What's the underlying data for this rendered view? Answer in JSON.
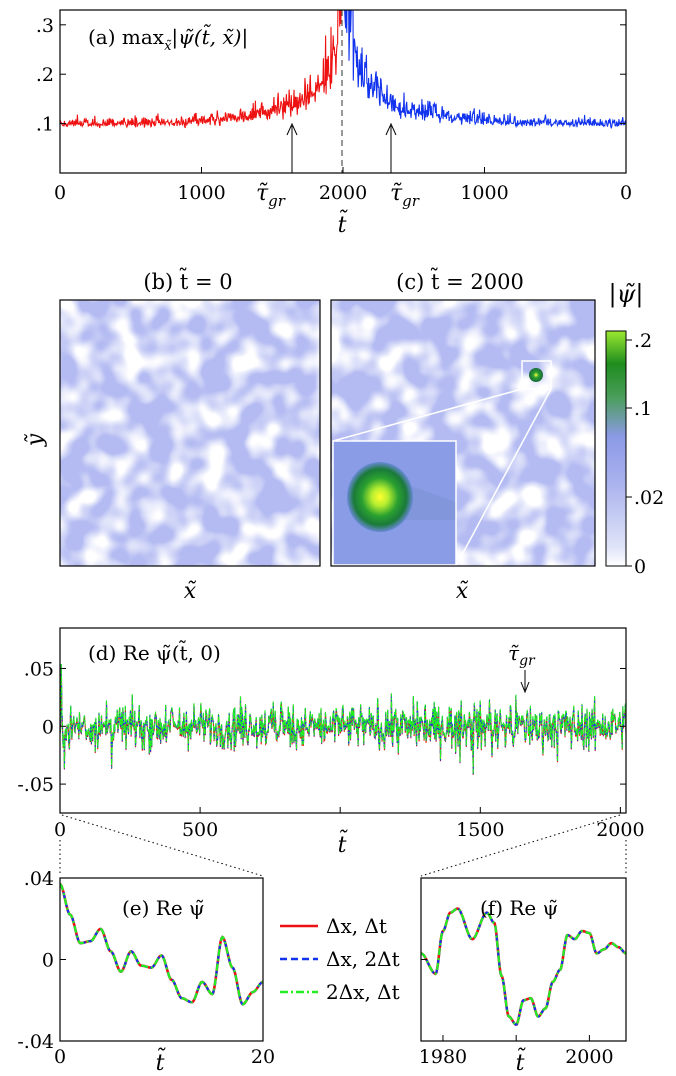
{
  "panel_a": {
    "label": "(a) max",
    "label_sub": "x̃",
    "label_expr": "|ψ̃(t̃, x̃)|",
    "yticks": [
      ".1",
      ".2",
      ".3"
    ],
    "xticks": [
      "0",
      "1000",
      "2000",
      "1000",
      "0"
    ],
    "xlabel": "t̃",
    "marker_label_left": "τ̃",
    "marker_label_right": "τ̃",
    "marker_sub": "gr"
  },
  "panel_b": {
    "title": "(b) t̃ = 0",
    "xlabel": "x̃",
    "ylabel": "ỹ"
  },
  "panel_c": {
    "title": "(c) t̃ = 2000",
    "xlabel": "x̃"
  },
  "colorbar": {
    "title": "|ψ̃|",
    "ticks": [
      ".2",
      ".1",
      ".02",
      "0"
    ]
  },
  "panel_d": {
    "label": "(d) Re ψ̃(t̃, 0)",
    "yticks": [
      ".05",
      "0",
      "-.05"
    ],
    "xticks": [
      "0",
      "500",
      "1500",
      "2000"
    ],
    "xlabel": "t̃",
    "marker_label": "τ̃",
    "marker_sub": "gr"
  },
  "panel_e": {
    "label": "(e) Re ψ̃",
    "yticks": [
      ".04",
      "0",
      "-.04"
    ],
    "xticks": [
      "0",
      "20"
    ],
    "xlabel": "t̃"
  },
  "panel_f": {
    "label": "(f) Re ψ̃",
    "xticks": [
      "1980",
      "2000"
    ],
    "xlabel": "t̃"
  },
  "legend": [
    {
      "label": "Δx, Δt",
      "color": "#ee1111",
      "dash": "solid"
    },
    {
      "label": "Δx, 2Δt",
      "color": "#1133ee",
      "dash": "dashed"
    },
    {
      "label": "2Δx, Δt",
      "color": "#22ee22",
      "dash": "dashdot"
    }
  ],
  "colors": {
    "red": "#ee1111",
    "blue": "#1133ee",
    "green": "#22ee22",
    "field": "#b3bbf2"
  },
  "chart_data": [
    {
      "type": "line",
      "panel": "a",
      "xlim": [
        0,
        4000
      ],
      "ylim": [
        0,
        0.33
      ],
      "x_tick_values": [
        0,
        1000,
        2000,
        3000,
        4000
      ],
      "series": [
        {
          "color": "#ee1111",
          "x": [
            0,
            500,
            1000,
            1300,
            1600,
            1800,
            1900,
            1950,
            2000
          ],
          "y": [
            0.1,
            0.1,
            0.105,
            0.115,
            0.13,
            0.16,
            0.2,
            0.24,
            0.33
          ]
        },
        {
          "color": "#1133ee",
          "x": [
            2000,
            2050,
            2100,
            2200,
            2400,
            2700,
            3000,
            3500,
            4000
          ],
          "y": [
            0.33,
            0.26,
            0.21,
            0.17,
            0.13,
            0.115,
            0.105,
            0.1,
            0.1
          ]
        }
      ],
      "markers": [
        1630,
        2350
      ],
      "center_line": 2000
    },
    {
      "type": "heatmap",
      "panels": [
        "b",
        "c"
      ],
      "colorbar_range": [
        0,
        0.22
      ],
      "peak": {
        "panel": "c",
        "value": 0.2
      }
    },
    {
      "type": "line",
      "panel": "d",
      "xlim": [
        0,
        2020
      ],
      "ylim": [
        -0.075,
        0.085
      ],
      "x_tick_values": [
        0,
        500,
        1000,
        1500,
        2000
      ],
      "y_range_of_signal": [
        -0.07,
        0.065
      ],
      "marker": 1660
    },
    {
      "type": "line",
      "panel": "e",
      "xlim": [
        0,
        20
      ],
      "ylim": [
        -0.04,
        0.04
      ],
      "x": [
        0,
        1,
        2,
        3,
        4,
        5,
        6,
        7,
        8,
        9,
        10,
        11,
        12,
        13,
        14,
        15,
        16,
        17,
        18,
        19,
        20
      ],
      "y": [
        0.037,
        0.022,
        0.008,
        0.009,
        0.015,
        0.004,
        -0.006,
        0.004,
        -0.003,
        -0.004,
        0.002,
        -0.01,
        -0.019,
        -0.021,
        -0.011,
        -0.017,
        0.011,
        -0.004,
        -0.022,
        -0.016,
        -0.011
      ]
    },
    {
      "type": "line",
      "panel": "f",
      "xlim": [
        1977,
        2005
      ],
      "ylim": [
        -0.04,
        0.04
      ],
      "x": [
        1977,
        1979,
        1980,
        1981,
        1982,
        1984,
        1986,
        1987,
        1988,
        1989,
        1990,
        1991,
        1992,
        1993,
        1994,
        1995,
        1996,
        1997,
        1998,
        1999,
        2000,
        2001,
        2002,
        2003,
        2004,
        2005
      ],
      "y": [
        0.003,
        -0.007,
        0.014,
        0.023,
        0.025,
        0.01,
        0.023,
        0.018,
        -0.008,
        -0.028,
        -0.032,
        -0.02,
        -0.019,
        -0.028,
        -0.024,
        -0.011,
        -0.005,
        0.012,
        0.01,
        0.014,
        0.013,
        0.003,
        0.005,
        0.008,
        0.006,
        0.003
      ]
    }
  ]
}
